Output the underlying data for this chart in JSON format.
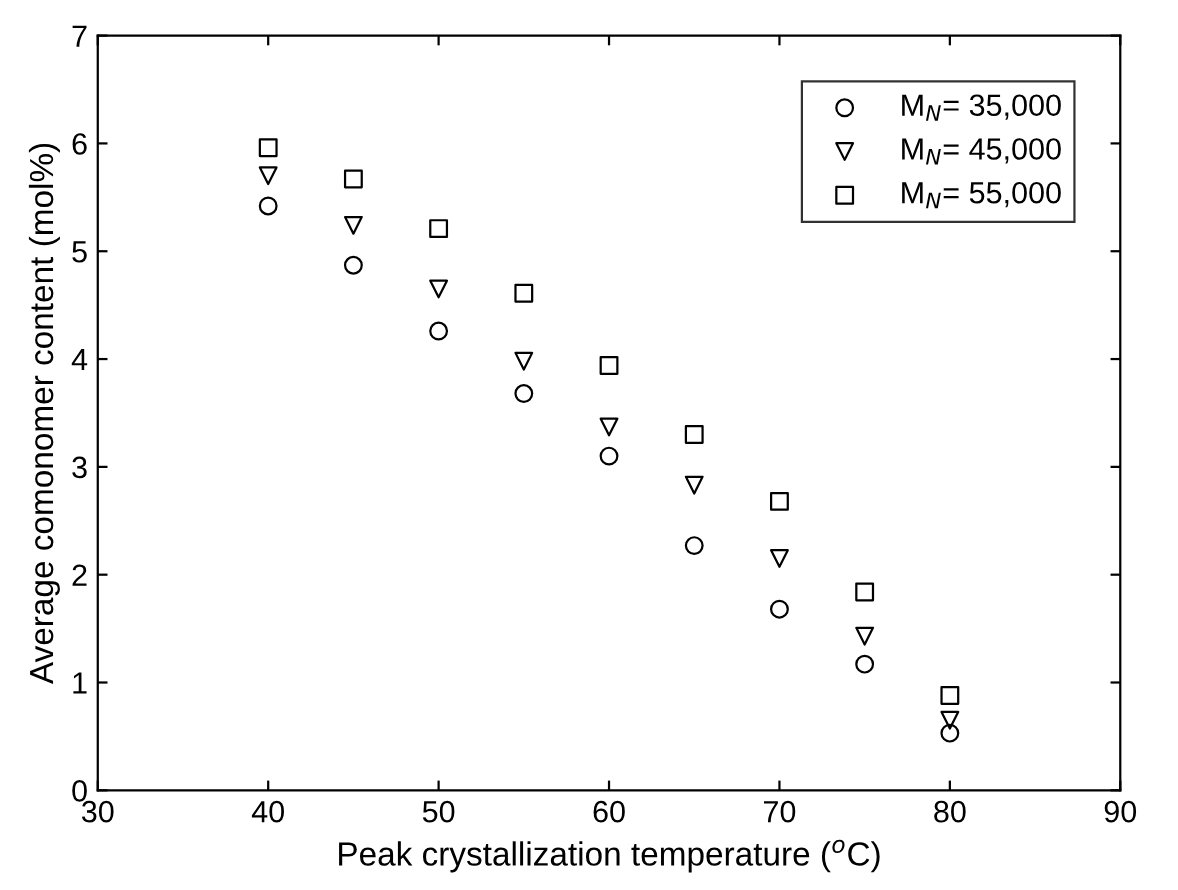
{
  "chart_data": {
    "type": "scatter",
    "xlabel": "Peak crystallization temperature ($^{o}$C)",
    "ylabel": "Average comonomer content (mol%)",
    "x": [
      40,
      45,
      50,
      55,
      60,
      65,
      70,
      75,
      80
    ],
    "series": [
      {
        "name": "M$_{N}$= 35,000",
        "color": "#000000",
        "marker": "circle",
        "values": [
          5.42,
          4.87,
          4.26,
          3.68,
          3.1,
          2.27,
          1.68,
          1.17,
          0.53
        ]
      },
      {
        "name": "M$_{N}$= 45,000",
        "color": "#000000",
        "marker": "triangle",
        "values": [
          5.7,
          5.24,
          4.65,
          3.98,
          3.37,
          2.83,
          2.15,
          1.43,
          0.65
        ]
      },
      {
        "name": "M$_{N}$= 55,000",
        "color": "#000000",
        "marker": "square",
        "values": [
          5.96,
          5.67,
          5.21,
          4.61,
          3.94,
          3.3,
          2.68,
          1.84,
          0.88
        ]
      }
    ],
    "xlim": [
      30,
      90
    ],
    "xticks": [
      30,
      40,
      50,
      60,
      70,
      80,
      90
    ],
    "ylim": [
      0,
      7
    ],
    "yticks": [
      0,
      1,
      2,
      3,
      4,
      5,
      6,
      7
    ],
    "grid": false,
    "legend": "top right"
  }
}
